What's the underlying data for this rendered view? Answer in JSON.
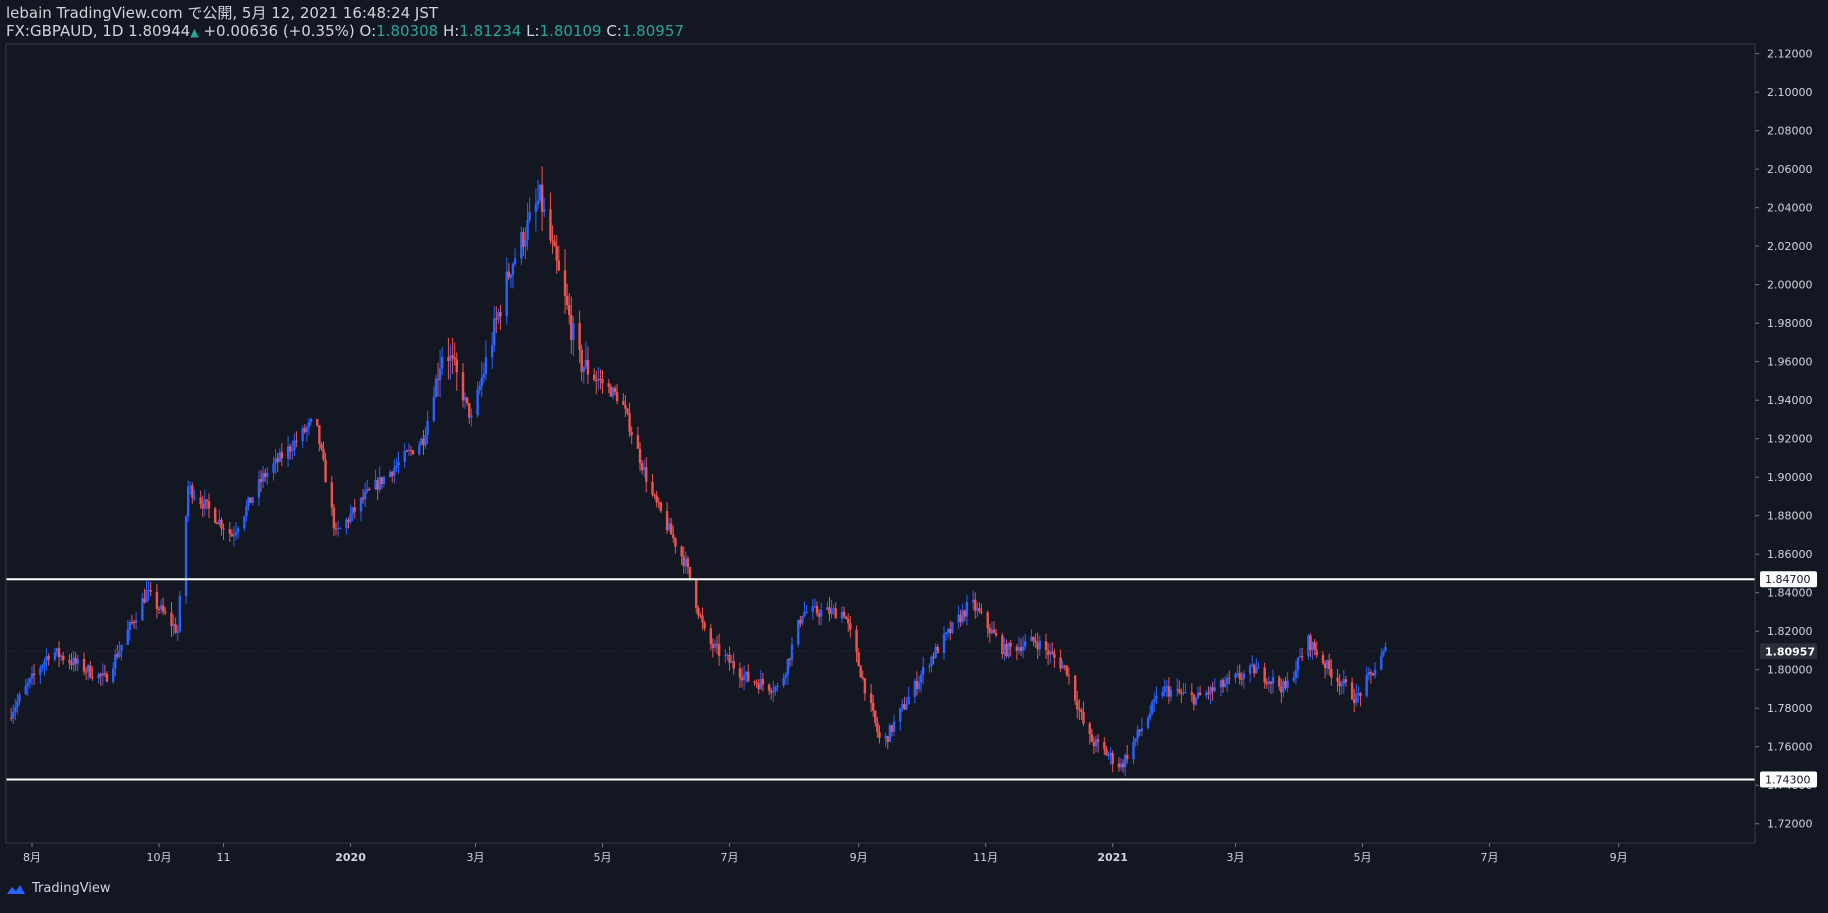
{
  "header": {
    "line1": "lebain TradingView.com で公開, 5月 12, 2021 16:48:24 JST",
    "symbol": "FX:GBPAUD, 1D",
    "last": "1.80944",
    "change": "+0.00636 (+0.35%)",
    "o_label": "O:",
    "o_value": "1.80308",
    "h_label": "H:",
    "h_value": "1.81234",
    "l_label": "L:",
    "l_value": "1.80109",
    "c_label": "C:",
    "c_value": "1.80957"
  },
  "footer": {
    "brand": "TradingView"
  },
  "colors": {
    "background": "#131722",
    "up": "#2962ff",
    "down": "#ef5350",
    "accent": "#26a69a",
    "hline": "#ffffff"
  },
  "chart_data": {
    "type": "line",
    "series": [
      {
        "x": [
          "2019-07-20",
          "2019-08-10",
          "2019-09-05",
          "2019-09-25",
          "2019-10-10",
          "2019-10-15",
          "2019-11-05",
          "2019-11-20",
          "2019-12-15",
          "2019-12-25",
          "2020-01-08",
          "2020-02-05",
          "2020-02-15",
          "2020-02-28",
          "2020-03-18",
          "2020-04-01",
          "2020-04-20",
          "2020-05-10",
          "2020-05-25",
          "2020-06-10",
          "2020-06-20",
          "2020-07-10",
          "2020-07-25",
          "2020-08-05",
          "2020-08-25",
          "2020-09-12",
          "2020-10-05",
          "2020-10-25",
          "2020-11-10",
          "2020-11-25",
          "2020-12-10",
          "2020-12-20",
          "2021-01-05",
          "2021-01-25",
          "2021-02-10",
          "2021-03-10",
          "2021-03-25",
          "2021-04-05",
          "2021-04-15",
          "2021-04-28",
          "2021-05-12"
        ],
        "y": [
          1.775,
          1.81,
          1.795,
          1.84,
          1.82,
          1.895,
          1.87,
          1.9,
          1.93,
          1.87,
          1.89,
          1.92,
          1.97,
          1.93,
          2.01,
          2.045,
          1.96,
          1.94,
          1.89,
          1.855,
          1.815,
          1.795,
          1.79,
          1.83,
          1.83,
          1.76,
          1.805,
          1.835,
          1.81,
          1.815,
          1.8,
          1.765,
          1.75,
          1.79,
          1.785,
          1.8,
          1.79,
          1.815,
          1.8,
          1.785,
          1.80957
        ]
      }
    ],
    "ylim": [
      1.71,
      2.125
    ],
    "y_ticks": [
      "2.12000",
      "2.10000",
      "2.08000",
      "2.06000",
      "2.04000",
      "2.02000",
      "2.00000",
      "1.98000",
      "1.96000",
      "1.94000",
      "1.92000",
      "1.90000",
      "1.88000",
      "1.86000",
      "1.84000",
      "1.82000",
      "1.80000",
      "1.78000",
      "1.76000",
      "1.74000",
      "1.72000"
    ],
    "x_ticks": [
      "8月",
      "10月",
      "11",
      "2020",
      "3月",
      "5月",
      "7月",
      "9月",
      "11月",
      "2021",
      "3月",
      "5月",
      "7月",
      "9月"
    ],
    "horizontal_lines": [
      {
        "value": 1.847,
        "label": "1.84700"
      },
      {
        "value": 1.743,
        "label": "1.74300"
      }
    ],
    "last_price_label": "1.80957",
    "grid": false
  }
}
